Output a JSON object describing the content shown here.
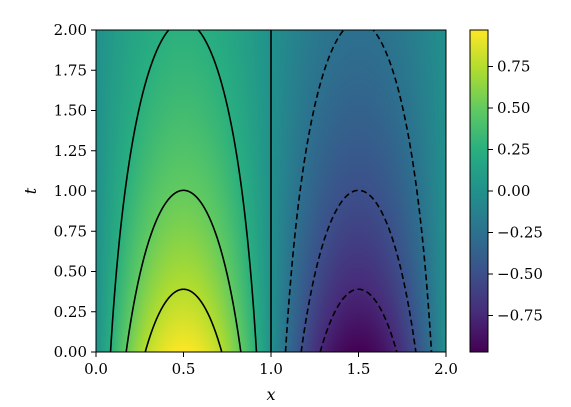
{
  "chart_data": {
    "type": "heatmap",
    "title": "",
    "xlabel": "x",
    "ylabel": "t",
    "xlim": [
      0.0,
      2.0
    ],
    "ylim": [
      0.0,
      2.0
    ],
    "x_ticks": [
      "0.0",
      "0.5",
      "1.0",
      "1.5",
      "2.0"
    ],
    "y_ticks": [
      "0.00",
      "0.25",
      "0.50",
      "0.75",
      "1.00",
      "1.25",
      "1.50",
      "1.75",
      "2.00"
    ],
    "colormap": "viridis",
    "colorbar": {
      "range": [
        -0.97,
        0.97
      ],
      "ticks": [
        -0.75,
        -0.5,
        -0.25,
        0.0,
        0.25,
        0.5,
        0.75
      ],
      "tick_labels": [
        "−0.75",
        "−0.50",
        "−0.25",
        "0.00",
        "0.25",
        "0.50",
        "0.75"
      ]
    },
    "field": "u(x,t) = sin(pi*x) * exp(-0.66*t), peak ~0.97 at (0.5, 0) and ~-0.97 at (1.5, 0)",
    "contours": {
      "positive_levels": [
        0.25,
        0.5,
        0.75
      ],
      "negative_levels": [
        -0.25,
        -0.5,
        -0.75
      ],
      "zero_level_line_x": 1.0,
      "positive_style": "solid",
      "negative_style": "dashed",
      "color": "#000000"
    },
    "grid": false
  }
}
